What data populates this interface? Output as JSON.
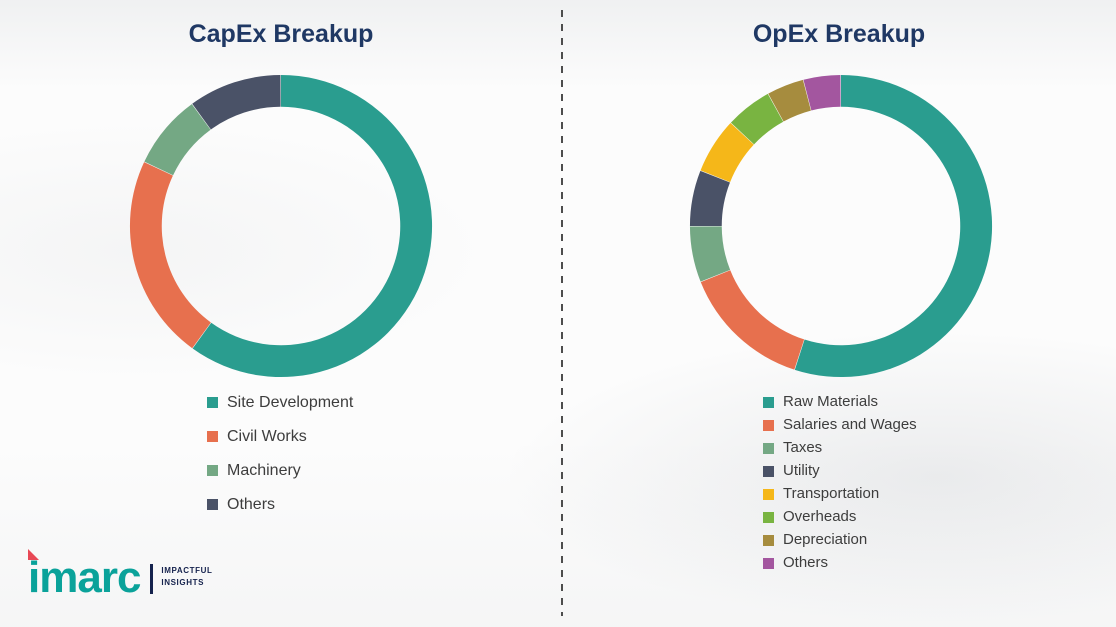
{
  "ui": {
    "title_color": "#1f3864",
    "legend_text_color": "#3d3d3d",
    "divider_color": "#4d4d4d",
    "background_color": "#fcfcfc"
  },
  "chart_data": [
    {
      "type": "pie",
      "donut": true,
      "title": "CapEx Breakup",
      "legend_position": "bottom",
      "segments": [
        {
          "label": "Site Development",
          "value": 60,
          "color": "#2a9d8f"
        },
        {
          "label": "Civil Works",
          "value": 22,
          "color": "#e7704e"
        },
        {
          "label": "Machinery",
          "value": 8,
          "color": "#74a884"
        },
        {
          "label": "Others",
          "value": 10,
          "color": "#4a5267"
        }
      ]
    },
    {
      "type": "pie",
      "donut": true,
      "title": "OpEx Breakup",
      "legend_position": "bottom",
      "segments": [
        {
          "label": "Raw Materials",
          "value": 55,
          "color": "#2a9d8f"
        },
        {
          "label": "Salaries and Wages",
          "value": 14,
          "color": "#e7704e"
        },
        {
          "label": "Taxes",
          "value": 6,
          "color": "#74a884"
        },
        {
          "label": "Utility",
          "value": 6,
          "color": "#4a5267"
        },
        {
          "label": "Transportation",
          "value": 6,
          "color": "#f5b719"
        },
        {
          "label": "Overheads",
          "value": 5,
          "color": "#79b441"
        },
        {
          "label": "Depreciation",
          "value": 4,
          "color": "#a68c3e"
        },
        {
          "label": "Others",
          "value": 4,
          "color": "#a3569f"
        }
      ]
    }
  ],
  "logo": {
    "brand": "imarc",
    "tagline_line1": "IMPACTFUL",
    "tagline_line2": "INSIGHTS",
    "brand_color": "#0aa29a",
    "accent_color": "#e84855",
    "tagline_color": "#15224d"
  }
}
